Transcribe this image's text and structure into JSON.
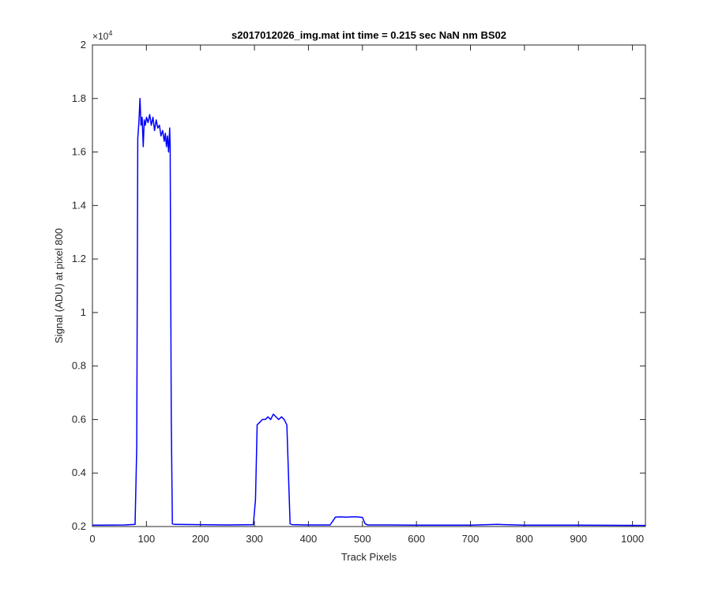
{
  "chart_data": {
    "type": "line",
    "title": "s2017012026_img.mat int time = 0.215 sec  NaN nm BS02",
    "xlabel": "Track Pixels",
    "ylabel": "Signal (ADU) at pixel 800",
    "xlim": [
      0,
      1024
    ],
    "ylim": [
      0.2,
      2.0
    ],
    "y_exponent_label": "×10",
    "y_exponent_power": "4",
    "x_ticks": [
      0,
      100,
      200,
      300,
      400,
      500,
      600,
      700,
      800,
      900,
      1000
    ],
    "x_tick_labels": [
      "0",
      "100",
      "200",
      "300",
      "400",
      "500",
      "600",
      "700",
      "800",
      "900",
      "1000"
    ],
    "y_ticks": [
      0.2,
      0.4,
      0.6,
      0.8,
      1.0,
      1.2,
      1.4,
      1.6,
      1.8,
      2.0
    ],
    "y_tick_labels": [
      "0.2",
      "0.4",
      "0.6",
      "0.8",
      "1",
      "1.2",
      "1.4",
      "1.6",
      "1.8",
      "2"
    ],
    "grid": false,
    "line_color": "#0000ff",
    "series": [
      {
        "x": [
          0,
          60,
          79,
          82,
          84,
          86,
          88,
          90,
          92,
          94,
          96,
          98,
          100,
          103,
          106,
          109,
          112,
          115,
          118,
          121,
          124,
          127,
          130,
          133,
          135,
          137,
          139,
          141,
          143,
          144,
          146,
          148,
          152,
          200,
          250,
          298,
          302,
          305,
          310,
          315,
          320,
          325,
          330,
          335,
          340,
          345,
          350,
          355,
          360,
          363,
          366,
          370,
          400,
          440,
          445,
          450,
          460,
          470,
          480,
          490,
          500,
          505,
          510,
          550,
          600,
          700,
          750,
          800,
          900,
          1024
        ],
        "y": [
          0.205,
          0.206,
          0.208,
          0.5,
          1.65,
          1.71,
          1.8,
          1.7,
          1.73,
          1.62,
          1.72,
          1.7,
          1.73,
          1.71,
          1.74,
          1.7,
          1.73,
          1.68,
          1.72,
          1.69,
          1.7,
          1.66,
          1.68,
          1.64,
          1.67,
          1.62,
          1.66,
          1.6,
          1.69,
          1.62,
          0.6,
          0.21,
          0.208,
          0.207,
          0.206,
          0.207,
          0.3,
          0.58,
          0.59,
          0.6,
          0.6,
          0.61,
          0.6,
          0.62,
          0.61,
          0.6,
          0.61,
          0.6,
          0.58,
          0.4,
          0.21,
          0.207,
          0.206,
          0.206,
          0.22,
          0.235,
          0.236,
          0.235,
          0.236,
          0.236,
          0.234,
          0.21,
          0.206,
          0.206,
          0.205,
          0.205,
          0.208,
          0.205,
          0.205,
          0.204
        ]
      }
    ]
  }
}
